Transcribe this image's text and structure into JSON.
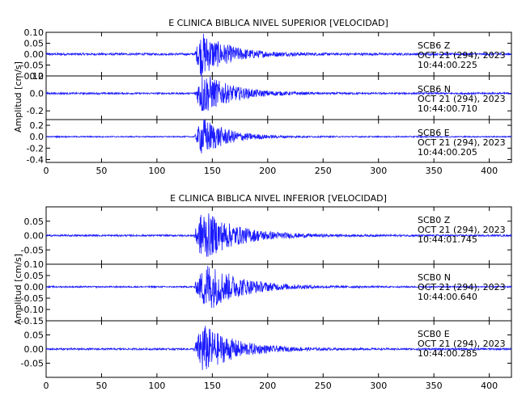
{
  "chart_data": [
    {
      "type": "line",
      "title": "E CLINICA BIBLICA NIVEL SUPERIOR [VELOCIDAD]",
      "ylabel": "Amplitud [cm/s]",
      "xlabel": "",
      "xlim": [
        0,
        420
      ],
      "x_ticks": [
        "0",
        "50",
        "100",
        "150",
        "200",
        "250",
        "300",
        "350",
        "400"
      ],
      "panels": [
        {
          "name": "SCB6 Z",
          "station": "SCB6",
          "component": "Z",
          "date": "OCT 21 (294), 2023",
          "time": "10:44:00.225",
          "ylim": [
            -0.1,
            0.1
          ],
          "y_ticks": [
            0.1,
            0.05,
            0.0,
            -0.05,
            -0.1
          ],
          "y_tick_labels": [
            "0.10",
            "0.05",
            "0.00",
            "-0.05",
            "-0.10"
          ],
          "onset_s": 134,
          "peak_s": 140,
          "peak_amplitude": 0.1,
          "noise_amplitude": 0.005,
          "decay_s": 25
        },
        {
          "name": "SCB6 N",
          "station": "SCB6",
          "component": "N",
          "date": "OCT 21 (294), 2023",
          "time": "10:44:00.710",
          "ylim": [
            -0.3,
            0.2
          ],
          "y_ticks": [
            0.2,
            0.0,
            -0.2
          ],
          "y_tick_labels": [
            "0.2",
            "0.0",
            "-0.2"
          ],
          "onset_s": 134,
          "peak_s": 141,
          "peak_amplitude": 0.25,
          "noise_amplitude": 0.01,
          "decay_s": 25
        },
        {
          "name": "SCB6 E",
          "station": "SCB6",
          "component": "E",
          "date": "OCT 21 (294), 2023",
          "time": "10:44:00.205",
          "ylim": [
            -0.45,
            0.3
          ],
          "y_ticks": [
            0.2,
            0.0,
            -0.2,
            -0.4
          ],
          "y_tick_labels": [
            "0.2",
            "0.0",
            "-0.2",
            "-0.4"
          ],
          "onset_s": 134,
          "peak_s": 141,
          "peak_amplitude": 0.35,
          "noise_amplitude": 0.01,
          "decay_s": 22
        }
      ]
    },
    {
      "type": "line",
      "title": "E CLINICA BIBLICA NIVEL INFERIOR [VELOCIDAD]",
      "ylabel": "Amplitud [cm/s]",
      "xlabel": "",
      "xlim": [
        0,
        420
      ],
      "x_ticks": [
        "0",
        "50",
        "100",
        "150",
        "200",
        "250",
        "300",
        "350",
        "400"
      ],
      "panels": [
        {
          "name": "SCB0 Z",
          "station": "SCB0",
          "component": "Z",
          "date": "OCT 21 (294), 2023",
          "time": "10:44:01.745",
          "ylim": [
            -0.1,
            0.1
          ],
          "y_ticks": [
            0.05,
            0.0,
            -0.05
          ],
          "y_tick_labels": [
            "0.05",
            "0.00",
            "-0.05"
          ],
          "onset_s": 133,
          "peak_s": 141,
          "peak_amplitude": 0.09,
          "noise_amplitude": 0.003,
          "decay_s": 30
        },
        {
          "name": "SCB0 N",
          "station": "SCB0",
          "component": "N",
          "date": "OCT 21 (294), 2023",
          "time": "10:44:00.640",
          "ylim": [
            -0.15,
            0.1
          ],
          "y_ticks": [
            0.1,
            0.05,
            0.0,
            -0.05,
            -0.1,
            -0.15
          ],
          "y_tick_labels": [
            "0.10",
            "0.05",
            "0.00",
            "-0.05",
            "-0.10",
            "-0.15"
          ],
          "onset_s": 133,
          "peak_s": 145,
          "peak_amplitude": 0.11,
          "noise_amplitude": 0.003,
          "decay_s": 30
        },
        {
          "name": "SCB0 E",
          "station": "SCB0",
          "component": "E",
          "date": "OCT 21 (294), 2023",
          "time": "10:44:00.285",
          "ylim": [
            -0.1,
            0.1
          ],
          "y_ticks": [
            0.05,
            0.0,
            -0.05
          ],
          "y_tick_labels": [
            "0.05",
            "0.00",
            "-0.05"
          ],
          "onset_s": 133,
          "peak_s": 141,
          "peak_amplitude": 0.09,
          "noise_amplitude": 0.003,
          "decay_s": 28
        }
      ]
    }
  ],
  "colors": {
    "trace": "#1a1aff",
    "axis": "#000000",
    "background": "#ffffff"
  }
}
